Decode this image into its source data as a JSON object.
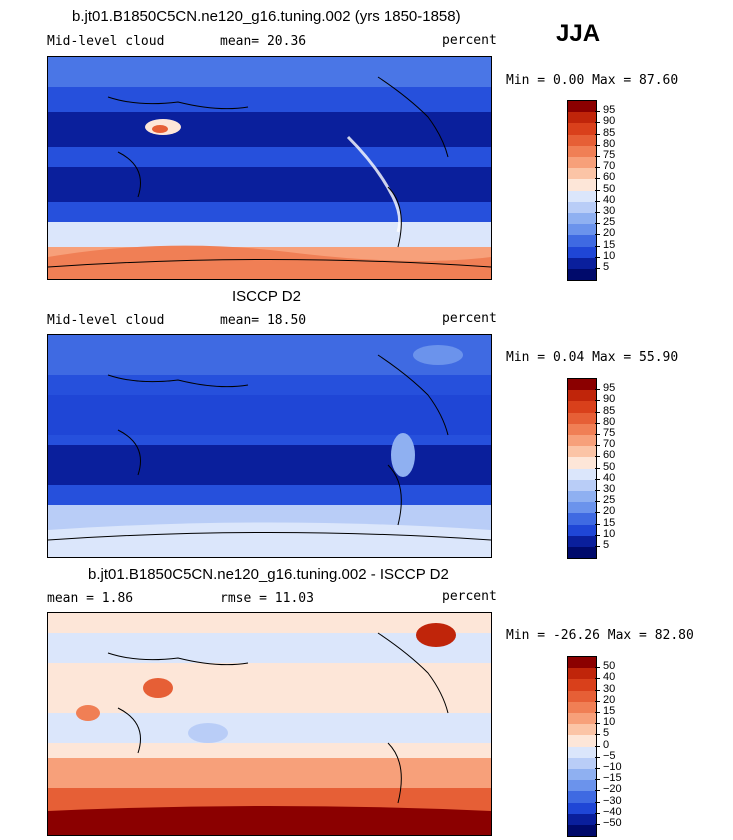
{
  "season": "JJA",
  "panels": [
    {
      "title": "b.jt01.B1850C5CN.ne120_g16.tuning.002 (yrs 1850-1858)",
      "left_label": "Mid-level cloud",
      "center_label": "mean=  20.36",
      "right_label": "percent",
      "minmax": "Min =   0.00 Max =  87.60"
    },
    {
      "title": "ISCCP D2",
      "left_label": "Mid-level cloud",
      "center_label": "mean=  18.50",
      "right_label": "percent",
      "minmax": "Min =   0.04 Max =  55.90"
    },
    {
      "title": "b.jt01.B1850C5CN.ne120_g16.tuning.002 - ISCCP D2",
      "left_label": "mean =   1.86",
      "center_label": "rmse =  11.03",
      "right_label": "percent",
      "minmax": "Min = -26.26 Max =  82.80"
    }
  ],
  "colorbar_abs": {
    "labels": [
      "95",
      "90",
      "85",
      "80",
      "75",
      "70",
      "60",
      "50",
      "40",
      "30",
      "25",
      "20",
      "15",
      "10",
      "5"
    ],
    "colors": [
      "#8b0000",
      "#c0250a",
      "#d9401b",
      "#e65f36",
      "#f07f55",
      "#f7a07a",
      "#fbc4a6",
      "#fde6d8",
      "#dbe6fb",
      "#b9cdf7",
      "#8fb0f1",
      "#6b93ec",
      "#3f6ae2",
      "#1f46d6",
      "#0a1f9c",
      "#000a6b"
    ]
  },
  "colorbar_diff": {
    "labels": [
      "50",
      "40",
      "30",
      "20",
      "15",
      "10",
      "5",
      "0",
      "−5",
      "−10",
      "−15",
      "−20",
      "−30",
      "−40",
      "−50"
    ],
    "colors": [
      "#8b0000",
      "#c0250a",
      "#d9401b",
      "#e65f36",
      "#f07f55",
      "#f7a07a",
      "#fbc4a6",
      "#fde6d8",
      "#dbe6fb",
      "#b9cdf7",
      "#8fb0f1",
      "#6b93ec",
      "#3f6ae2",
      "#1f46d6",
      "#0a1f9c",
      "#000a6b"
    ]
  }
}
